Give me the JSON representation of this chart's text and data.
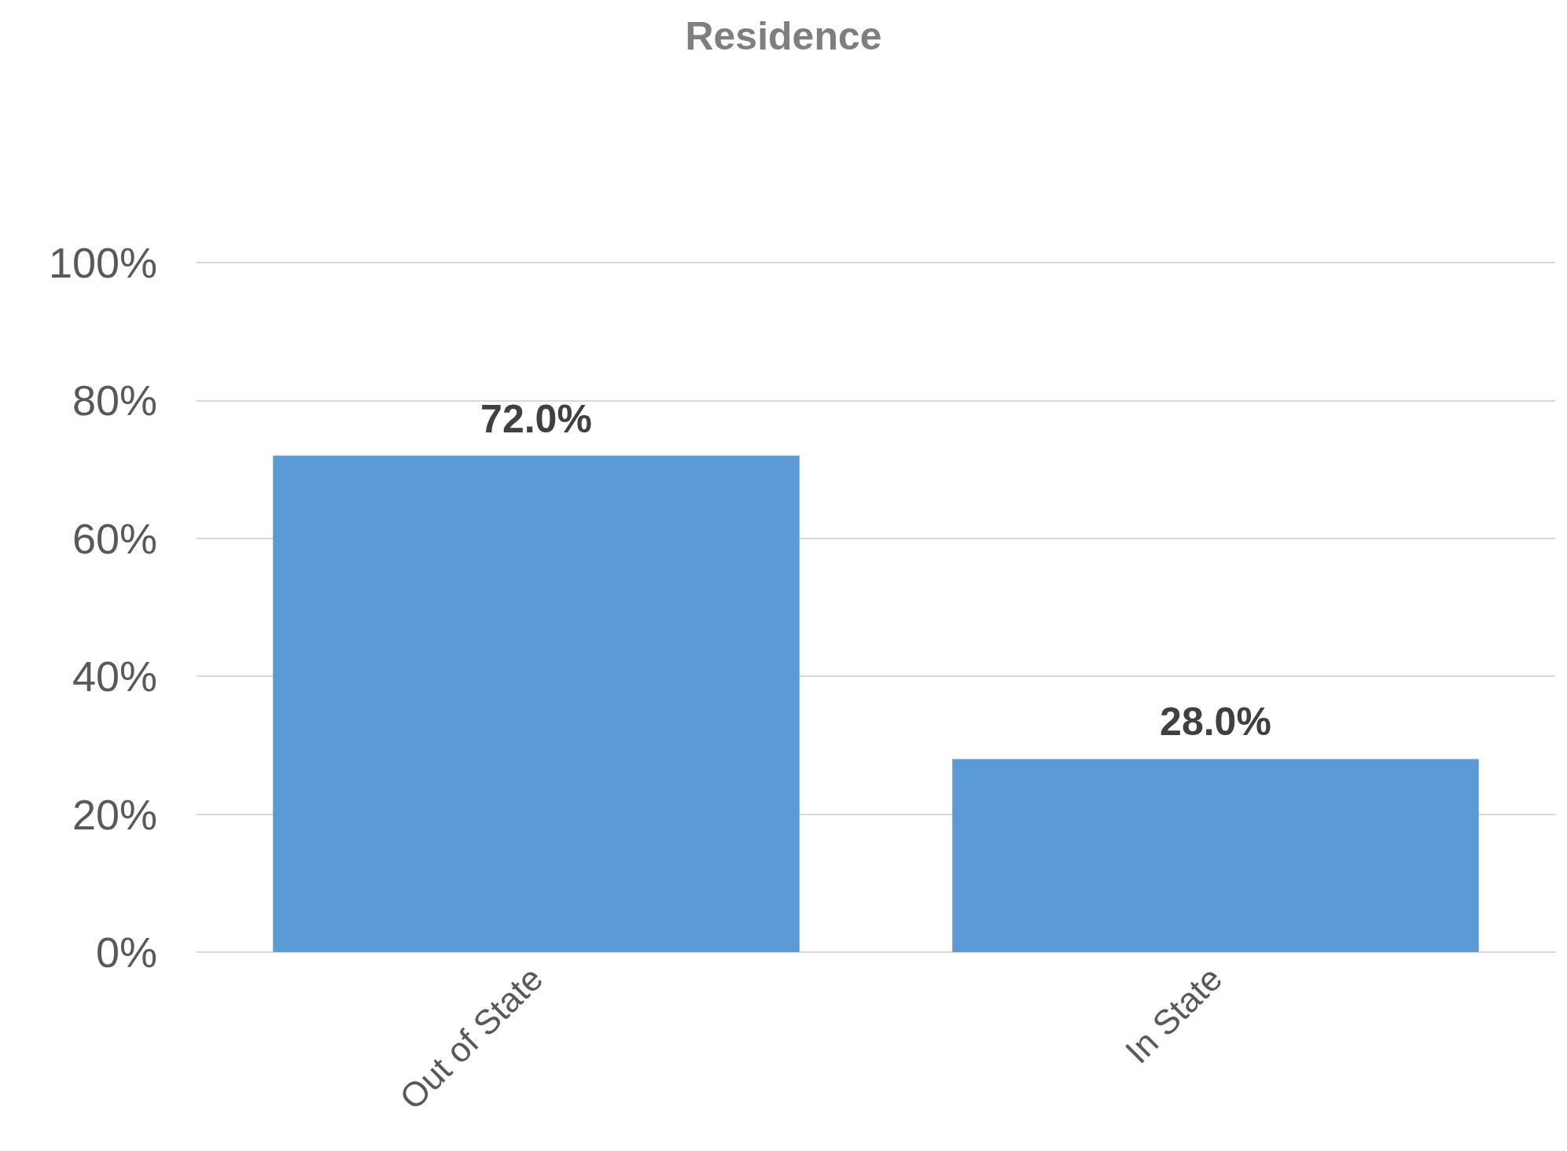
{
  "chart_data": {
    "type": "bar",
    "title": "Residence",
    "categories": [
      "Out of State",
      "In State"
    ],
    "values": [
      72.0,
      28.0
    ],
    "color": "#5b9bd5",
    "value_labels": [
      "72.0%",
      "28.0%"
    ],
    "ylim": [
      0,
      100
    ],
    "yticks": [
      {
        "value": 0,
        "label": "0%"
      },
      {
        "value": 20,
        "label": "20%"
      },
      {
        "value": 40,
        "label": "40%"
      },
      {
        "value": 60,
        "label": "60%"
      },
      {
        "value": 80,
        "label": "80%"
      },
      {
        "value": 100,
        "label": "100%"
      }
    ],
    "grid": "y"
  }
}
